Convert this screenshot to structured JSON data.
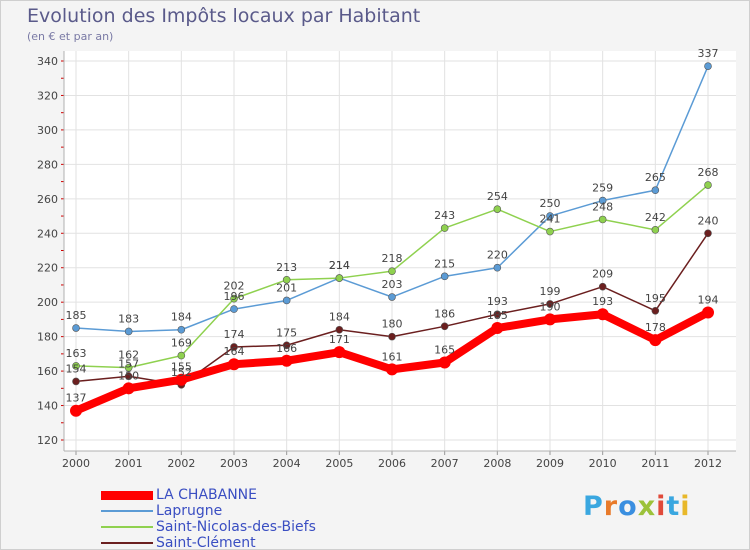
{
  "header": {
    "title": "Evolution des Impôts locaux par Habitant",
    "subtitle": "(en € et par an)"
  },
  "logo": {
    "text": "Proxiti",
    "letter_colors": [
      "#3aa7e0",
      "#e87a2a",
      "#3a8fe0",
      "#9cc23a",
      "#e04a3a",
      "#3aa7e0",
      "#e8b82a"
    ]
  },
  "chart_data": {
    "type": "line",
    "title": "Evolution des Impôts locaux par Habitant",
    "subtitle": "(en € et par an)",
    "xlabel": "",
    "ylabel": "",
    "x": [
      "2000",
      "2001",
      "2002",
      "2003",
      "2004",
      "2005",
      "2006",
      "2007",
      "2008",
      "2009",
      "2010",
      "2011",
      "2012"
    ],
    "ylim": [
      120,
      340
    ],
    "yticks": [
      120,
      140,
      160,
      180,
      200,
      220,
      240,
      260,
      280,
      300,
      320,
      340
    ],
    "grid": true,
    "legend": "bottom-left",
    "series": [
      {
        "name": "Laprugne",
        "color": "#5b9bd5",
        "values": [
          185,
          183,
          184,
          196,
          201,
          214,
          203,
          215,
          220,
          250,
          259,
          265,
          337
        ]
      },
      {
        "name": "Saint-Nicolas-des-Biefs",
        "color": "#8fd14f",
        "values": [
          163,
          162,
          169,
          202,
          213,
          214,
          218,
          243,
          254,
          241,
          248,
          242,
          268
        ]
      },
      {
        "name": "Saint-Clément",
        "color": "#6b1f1f",
        "values": [
          154,
          157,
          152,
          174,
          175,
          184,
          180,
          186,
          193,
          199,
          209,
          195,
          240
        ]
      },
      {
        "name": "LA CHABANNE",
        "color": "#ff0000",
        "values": [
          137,
          150,
          155,
          164,
          166,
          171,
          161,
          165,
          185,
          190,
          193,
          178,
          194
        ]
      }
    ]
  }
}
